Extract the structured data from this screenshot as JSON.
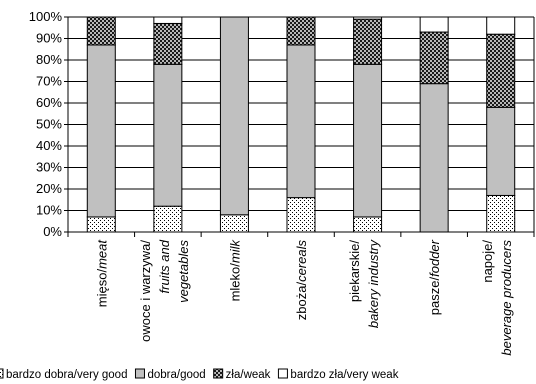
{
  "chart_data": {
    "type": "bar",
    "stacked": "percent",
    "ylim": [
      0,
      100
    ],
    "y_ticks": [
      "0%",
      "10%",
      "20%",
      "30%",
      "40%",
      "50%",
      "60%",
      "70%",
      "80%",
      "90%",
      "100%"
    ],
    "grid": true,
    "categories": [
      {
        "line1": "mięso/",
        "line1_italic": "meat",
        "line2": "",
        "line2_italic": ""
      },
      {
        "line1": "owoce i warzywa/",
        "line1_italic": "",
        "line2": "",
        "line2_italic": "fruits and",
        "line3": "vegetables"
      },
      {
        "line1": "mleko/",
        "line1_italic": "milk",
        "line2": "",
        "line2_italic": ""
      },
      {
        "line1": "zboża/",
        "line1_italic": "cereals",
        "line2": "",
        "line2_italic": ""
      },
      {
        "line1": "piekarskie/",
        "line1_italic": "",
        "line2": "",
        "line2_italic": "bakery industry"
      },
      {
        "line1": "pasze/",
        "line1_italic": "fodder",
        "line2": "",
        "line2_italic": ""
      },
      {
        "line1": "napoje/",
        "line1_italic": "",
        "line2": "",
        "line2_italic": "beverage producers"
      }
    ],
    "series": [
      {
        "name": "bardzo dobra/very good",
        "pattern": "dots",
        "values": [
          7,
          12,
          8,
          16,
          7,
          0,
          17
        ]
      },
      {
        "name": "dobra/good",
        "pattern": "gray",
        "values": [
          80,
          66,
          92,
          71,
          71,
          69,
          41
        ]
      },
      {
        "name": "zła/weak",
        "pattern": "cross",
        "values": [
          13,
          19,
          0,
          13,
          21,
          24,
          34
        ]
      },
      {
        "name": "bardzo zła/very weak",
        "pattern": "white",
        "values": [
          0,
          3,
          0,
          0,
          1,
          7,
          8
        ]
      }
    ],
    "legend_position": "bottom"
  }
}
